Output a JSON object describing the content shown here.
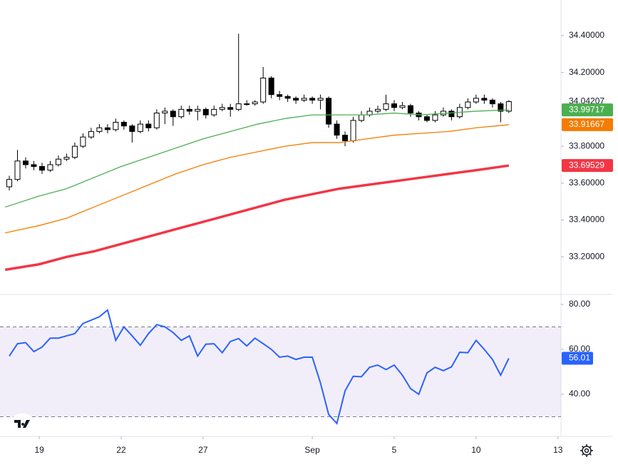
{
  "chart_data": [
    {
      "type": "candlestick",
      "x": [
        -1.1,
        -0.8,
        -0.5,
        -0.2,
        0.1,
        0.4,
        0.7,
        1,
        1.3,
        1.6,
        1.9,
        2.2,
        2.5,
        2.8,
        3.1,
        3.4,
        3.7,
        4,
        4.3,
        4.6,
        4.9,
        5.2,
        5.5,
        5.8,
        6.1,
        6.4,
        6.7,
        7,
        7.3,
        7.6,
        7.9,
        8.2,
        8.5,
        8.8,
        9.1,
        9.4,
        9.7,
        10,
        10.3,
        10.6,
        10.9,
        11.2,
        11.5,
        11.8,
        12.1,
        12.4,
        12.7,
        13,
        13.3,
        13.6,
        13.9,
        14.2,
        14.5,
        14.8,
        15.1,
        15.4,
        15.7,
        16,
        16.3,
        16.6,
        16.9,
        17.2
      ],
      "open": [
        33.58,
        33.62,
        33.72,
        33.7,
        33.69,
        33.67,
        33.7,
        33.73,
        33.74,
        33.8,
        33.85,
        33.88,
        33.9,
        33.89,
        33.93,
        33.91,
        33.88,
        33.92,
        33.9,
        33.98,
        33.99,
        33.96,
        34.0,
        33.99,
        34.0,
        33.97,
        34.0,
        34.01,
        34.0,
        34.03,
        34.03,
        34.04,
        34.17,
        34.08,
        34.07,
        34.06,
        34.05,
        34.06,
        34.05,
        34.06,
        33.92,
        33.86,
        33.83,
        33.94,
        33.97,
        33.99,
        34.0,
        34.03,
        34.01,
        34.02,
        33.98,
        33.96,
        33.94,
        33.97,
        33.99,
        33.96,
        34.01,
        34.04,
        34.06,
        34.05,
        34.03,
        33.99
      ],
      "high": [
        33.64,
        33.78,
        33.74,
        33.72,
        33.71,
        33.72,
        33.75,
        33.76,
        33.82,
        33.87,
        33.9,
        33.92,
        33.92,
        33.95,
        33.94,
        33.92,
        33.94,
        33.94,
        34.0,
        34.01,
        34.0,
        34.02,
        34.02,
        34.02,
        34.01,
        34.02,
        34.03,
        34.03,
        34.41,
        34.05,
        34.05,
        34.23,
        34.18,
        34.1,
        34.08,
        34.07,
        34.08,
        34.07,
        34.08,
        34.07,
        33.94,
        33.88,
        33.96,
        33.99,
        34.01,
        34.02,
        34.08,
        34.05,
        34.04,
        34.03,
        33.99,
        33.97,
        33.99,
        34.01,
        34.0,
        34.03,
        34.06,
        34.08,
        34.08,
        34.06,
        34.04,
        34.05
      ],
      "low": [
        33.56,
        33.61,
        33.68,
        33.67,
        33.65,
        33.66,
        33.69,
        33.72,
        33.73,
        33.79,
        33.84,
        33.87,
        33.87,
        33.88,
        33.89,
        33.82,
        33.87,
        33.88,
        33.89,
        33.92,
        33.91,
        33.95,
        33.97,
        33.94,
        33.95,
        33.96,
        33.99,
        33.96,
        33.99,
        34.02,
        34.02,
        34.03,
        34.06,
        34.05,
        34.04,
        34.03,
        34.04,
        34.03,
        34.0,
        33.9,
        33.84,
        33.8,
        33.82,
        33.93,
        33.96,
        33.98,
        33.99,
        33.99,
        34.0,
        33.96,
        33.94,
        33.93,
        33.93,
        33.96,
        33.94,
        33.95,
        34.0,
        34.03,
        34.03,
        34.01,
        33.93,
        33.98
      ],
      "close": [
        33.62,
        33.72,
        33.7,
        33.69,
        33.67,
        33.7,
        33.73,
        33.74,
        33.8,
        33.85,
        33.88,
        33.9,
        33.89,
        33.93,
        33.91,
        33.88,
        33.92,
        33.9,
        33.98,
        33.99,
        33.96,
        34.0,
        33.99,
        34.0,
        33.97,
        34.0,
        34.01,
        34.0,
        34.03,
        34.03,
        34.04,
        34.17,
        34.08,
        34.07,
        34.06,
        34.05,
        34.06,
        34.05,
        34.06,
        33.92,
        33.86,
        33.83,
        33.94,
        33.97,
        33.99,
        34.0,
        34.03,
        34.01,
        34.02,
        33.98,
        33.96,
        33.94,
        33.97,
        33.99,
        33.96,
        34.01,
        34.04,
        34.06,
        34.05,
        34.03,
        33.99,
        34.04207
      ],
      "up_color": "#ffffff",
      "down_color": "#000000",
      "ma_x": [
        -1.25,
        0,
        1,
        2,
        3,
        4,
        5,
        6,
        7,
        8,
        9,
        10,
        11,
        12,
        13,
        14,
        15,
        16,
        17.2
      ],
      "moving_averages": [
        {
          "color": "#4caf50",
          "values": [
            33.47,
            33.53,
            33.57,
            33.63,
            33.69,
            33.74,
            33.79,
            33.84,
            33.88,
            33.92,
            33.95,
            33.97,
            33.97,
            33.97,
            33.98,
            33.97,
            33.98,
            33.99,
            33.99717
          ]
        },
        {
          "color": "#f57c00",
          "values": [
            33.33,
            33.37,
            33.41,
            33.47,
            33.53,
            33.59,
            33.65,
            33.7,
            33.74,
            33.77,
            33.8,
            33.82,
            33.82,
            33.84,
            33.86,
            33.87,
            33.88,
            33.9,
            33.91667
          ]
        },
        {
          "color": "#f23645",
          "values": [
            33.13,
            33.16,
            33.2,
            33.23,
            33.27,
            33.31,
            33.35,
            33.39,
            33.43,
            33.47,
            33.51,
            33.54,
            33.57,
            33.59,
            33.61,
            33.63,
            33.65,
            33.67,
            33.69529
          ]
        }
      ],
      "last_price": 34.04207,
      "ylim": [
        33.0,
        34.593
      ],
      "yticks": [
        {
          "value": 34.4,
          "label": "34.40000"
        },
        {
          "value": 34.2,
          "label": "34.20000"
        },
        {
          "value": 33.8,
          "label": "33.80000"
        },
        {
          "value": 33.6,
          "label": "33.60000"
        },
        {
          "value": 33.4,
          "label": "33.40000"
        },
        {
          "value": 33.2,
          "label": "33.20000"
        }
      ],
      "xlim": [
        -1.44,
        19.11
      ],
      "xticks": [
        {
          "value": 0,
          "label": "19"
        },
        {
          "value": 3,
          "label": "22"
        },
        {
          "value": 6,
          "label": "27"
        },
        {
          "value": 10,
          "label": "Sep"
        },
        {
          "value": 13,
          "label": "5"
        },
        {
          "value": 16,
          "label": "10"
        },
        {
          "value": 19,
          "label": "13"
        }
      ],
      "grid": false
    },
    {
      "type": "line",
      "values": [
        57,
        62.5,
        63,
        59,
        61,
        65,
        65,
        66,
        67,
        71.5,
        73,
        74.5,
        77.5,
        64,
        70,
        66,
        61.8,
        67,
        71,
        70,
        67.5,
        64,
        66,
        57,
        62.3,
        62.5,
        58.5,
        63.5,
        64.8,
        61.5,
        65,
        62.5,
        60,
        56.5,
        57,
        55.5,
        56.5,
        56.5,
        45,
        31,
        27,
        41.5,
        48,
        47.8,
        52,
        53,
        51,
        53,
        48.5,
        42.5,
        40,
        49.5,
        52,
        50.5,
        52.2,
        58.7,
        58.5,
        64,
        60,
        55.5,
        48.5,
        56.01
      ],
      "color": "#2962ff",
      "ylim": [
        21.9,
        83.8
      ],
      "yticks": [
        {
          "value": 40,
          "label": "40.00"
        },
        {
          "value": 60,
          "label": "60.00"
        },
        {
          "value": 80,
          "label": "80.00"
        }
      ],
      "upper_band": 70,
      "lower_band": 30
    }
  ]
}
